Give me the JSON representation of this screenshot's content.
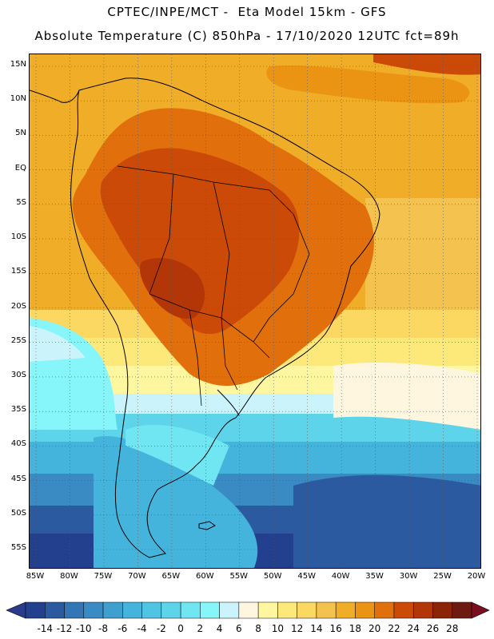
{
  "header": {
    "line1": "CPTEC/INPE/MCT -  Eta Model 15km - GFS",
    "line2": "Absolute Temperature (C) 850hPa - 17/10/2020 12UTC fct=89h"
  },
  "map": {
    "lat_labels": [
      "15N",
      "10N",
      "5N",
      "EQ",
      "5S",
      "10S",
      "15S",
      "20S",
      "25S",
      "30S",
      "35S",
      "40S",
      "45S",
      "50S",
      "55S"
    ],
    "lon_labels": [
      "85W",
      "80W",
      "75W",
      "70W",
      "65W",
      "60W",
      "55W",
      "50W",
      "45W",
      "40W",
      "35W",
      "30W",
      "25W",
      "20W"
    ],
    "gridlines": "dotted"
  },
  "colorbar": {
    "labels": [
      "-14",
      "-12",
      "-10",
      "-8",
      "-6",
      "-4",
      "-2",
      "0",
      "2",
      "4",
      "6",
      "8",
      "10",
      "12",
      "14",
      "16",
      "18",
      "20",
      "22",
      "24",
      "26",
      "28"
    ],
    "colors": [
      "#23408e",
      "#2c5aa0",
      "#3375b5",
      "#3a8ac3",
      "#3fa0d0",
      "#44b4dc",
      "#4fc5e3",
      "#5ed4ea",
      "#6fe6f1",
      "#86f6fb",
      "#cbf3fb",
      "#fff6e0",
      "#fff6a0",
      "#fde97a",
      "#fbd862",
      "#f4c24e",
      "#f0ad28",
      "#eb9414",
      "#e1700c",
      "#cc4a08",
      "#b23608",
      "#8c2408",
      "#6f1a10"
    ],
    "under_color": "#2b3a8a",
    "over_color": "#7a0e1e"
  }
}
